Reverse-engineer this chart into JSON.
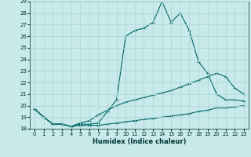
{
  "xlabel": "Humidex (Indice chaleur)",
  "background_color": "#c8eaea",
  "grid_color": "#b0d8d8",
  "line_color": "#006666",
  "xlim": [
    -0.5,
    23.5
  ],
  "ylim": [
    18,
    29
  ],
  "yticks": [
    18,
    19,
    20,
    21,
    22,
    23,
    24,
    25,
    26,
    27,
    28,
    29
  ],
  "xticks": [
    0,
    1,
    2,
    3,
    4,
    5,
    6,
    7,
    8,
    9,
    10,
    11,
    12,
    13,
    14,
    15,
    16,
    17,
    18,
    19,
    20,
    21,
    22,
    23
  ],
  "curve1_x": [
    0,
    1,
    2,
    3,
    4,
    5,
    6,
    7,
    8,
    9,
    10,
    11,
    12,
    13,
    14,
    15,
    16,
    17,
    18,
    19,
    20,
    21,
    22,
    23
  ],
  "curve1_y": [
    19.7,
    19.0,
    18.4,
    18.4,
    18.2,
    18.4,
    18.4,
    18.5,
    19.5,
    20.5,
    26.0,
    26.5,
    26.7,
    27.2,
    29.0,
    27.2,
    28.0,
    26.5,
    23.8,
    22.8,
    21.0,
    20.5,
    20.5,
    20.4
  ],
  "curve2_x": [
    0,
    1,
    2,
    3,
    4,
    5,
    6,
    7,
    8,
    9,
    10,
    11,
    12,
    13,
    14,
    15,
    16,
    17,
    18,
    19,
    20,
    21,
    22,
    23
  ],
  "curve2_y": [
    19.7,
    19.0,
    18.4,
    18.4,
    18.2,
    18.5,
    18.7,
    19.2,
    19.6,
    20.0,
    20.3,
    20.5,
    20.7,
    20.9,
    21.1,
    21.3,
    21.6,
    21.9,
    22.2,
    22.5,
    22.8,
    22.5,
    21.5,
    21.0
  ],
  "curve3_x": [
    0,
    1,
    2,
    3,
    4,
    5,
    6,
    7,
    8,
    9,
    10,
    11,
    12,
    13,
    14,
    15,
    16,
    17,
    18,
    19,
    20,
    21,
    22,
    23
  ],
  "curve3_y": [
    19.7,
    19.0,
    18.4,
    18.4,
    18.2,
    18.3,
    18.3,
    18.3,
    18.4,
    18.5,
    18.6,
    18.7,
    18.8,
    18.9,
    19.0,
    19.1,
    19.2,
    19.3,
    19.5,
    19.6,
    19.8,
    19.8,
    19.9,
    20.0
  ]
}
